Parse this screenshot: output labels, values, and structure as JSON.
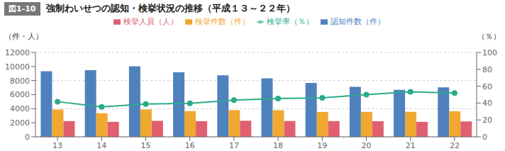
{
  "chart_data": {
    "type": "bar",
    "title": "強制わいせつの認知・検挙状況の推移（平成１３～２２年）",
    "annotations": [
      "図1-10"
    ],
    "categories": [
      "13",
      "14",
      "15",
      "16",
      "17",
      "18",
      "19",
      "20",
      "21",
      "22"
    ],
    "series": [
      {
        "name": "認知件数（件）",
        "color": "#4f81bd",
        "values": [
          9326,
          9476,
          10029,
          9184,
          8751,
          8326,
          7664,
          7111,
          6688,
          7027
        ]
      },
      {
        "name": "検挙件数（件）",
        "color": "#f0a830",
        "values": [
          3887,
          3367,
          3893,
          3656,
          3797,
          3779,
          3542,
          3555,
          3563,
          3637
        ]
      },
      {
        "name": "検挙人員（人）",
        "color": "#e06070",
        "values": [
          2236,
          2130,
          2273,
          2225,
          2286,
          2254,
          2240,
          2219,
          2129,
          2189
        ]
      },
      {
        "name": "検挙率（％）",
        "type": "line",
        "axis": "y2",
        "color": "#2aab8c",
        "marker": "circle",
        "values": [
          41.7,
          35.5,
          38.8,
          39.8,
          43.4,
          45.4,
          46.2,
          50.0,
          53.3,
          51.8
        ]
      }
    ],
    "ylabel": "（件・人）",
    "y2label": "（％）",
    "ylim": [
      0,
      12000
    ],
    "yticks": [
      0,
      2000,
      4000,
      6000,
      8000,
      10000,
      12000
    ],
    "y2lim": [
      0,
      100
    ],
    "y2ticks": [
      0,
      20,
      40,
      60,
      80,
      100
    ],
    "grid": true,
    "legend": "top"
  }
}
